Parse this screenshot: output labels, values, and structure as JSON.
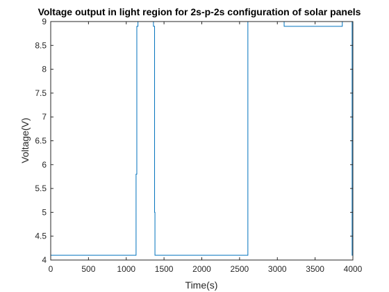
{
  "chart_data": {
    "type": "line",
    "title": "Voltage output in light region for 2s-p-2s configuration of solar panels",
    "xlabel": "Time(s)",
    "ylabel": "Voltage(V)",
    "xlim": [
      0,
      4000
    ],
    "ylim": [
      4,
      9
    ],
    "xticks": [
      0,
      500,
      1000,
      1500,
      2000,
      2500,
      3000,
      3500,
      4000
    ],
    "yticks": [
      4,
      4.5,
      5,
      5.5,
      6,
      6.5,
      7,
      7.5,
      8,
      8.5,
      9
    ],
    "ytick_labels": [
      "4",
      "4.5",
      "5",
      "5.5",
      "6",
      "6.5",
      "7",
      "7.5",
      "8",
      "8.5",
      "9"
    ],
    "grid": false,
    "box": true,
    "series": [
      {
        "color": "#0072BD",
        "x": [
          0,
          0,
          20,
          20,
          1130,
          1130,
          1140,
          1140,
          1155,
          1155,
          1300,
          1300,
          1360,
          1360,
          1375,
          1375,
          1380,
          1380,
          1400,
          1400,
          2610,
          2610,
          2620,
          2620,
          3090,
          3090,
          3860,
          3860,
          3990,
          3990,
          4000,
          4000
        ],
        "y": [
          4.2,
          4.1,
          4.1,
          4.1,
          4.1,
          5.8,
          5.8,
          8.9,
          8.9,
          9.0,
          9.0,
          9.0,
          9.0,
          8.9,
          8.9,
          5.0,
          5.0,
          4.1,
          4.1,
          4.1,
          4.1,
          9.0,
          9.0,
          9.0,
          9.0,
          8.9,
          8.9,
          9.0,
          9.0,
          4.1,
          4.1,
          9.0
        ]
      }
    ]
  }
}
